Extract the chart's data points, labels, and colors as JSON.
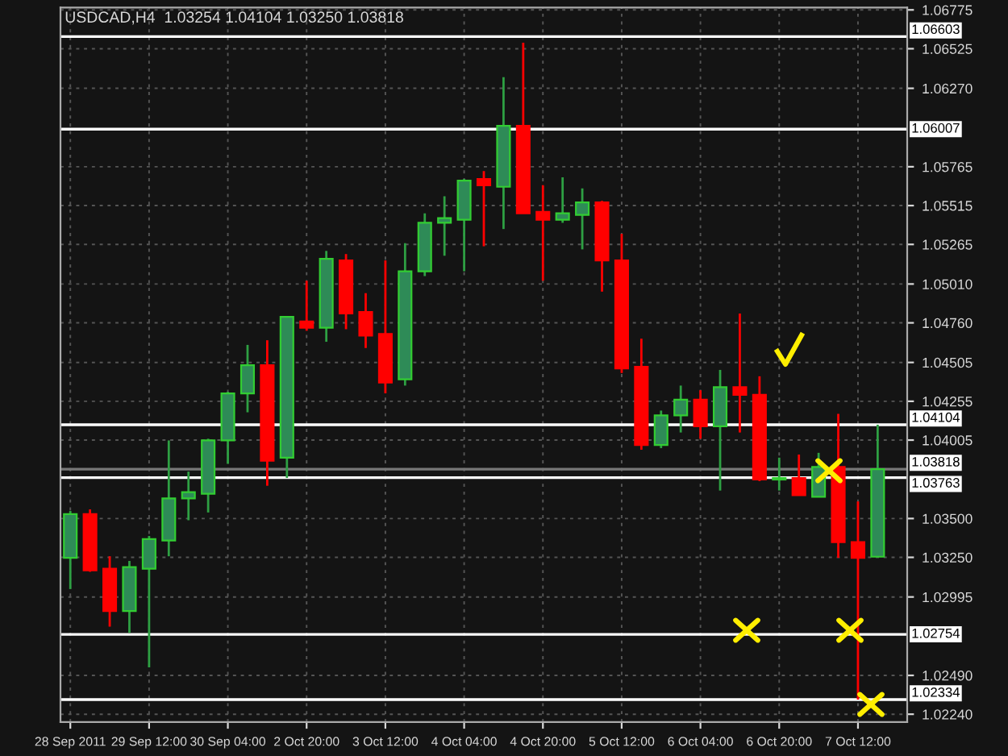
{
  "chart_data": {
    "type": "candlestick",
    "title": "USDCAD,H4  1.03254 1.04104 1.03250 1.03818",
    "categories": [
      "28 Sep 2011",
      null,
      null,
      null,
      "29 Sep 12:00",
      null,
      null,
      null,
      "30 Sep 04:00",
      null,
      null,
      null,
      "2 Oct 20:00",
      null,
      null,
      null,
      "3 Oct 12:00",
      null,
      null,
      null,
      "4 Oct 04:00",
      null,
      null,
      null,
      "4 Oct 20:00",
      null,
      null,
      null,
      "5 Oct 12:00",
      null,
      null,
      null,
      "6 Oct 04:00",
      null,
      null,
      null,
      "6 Oct 20:00",
      null,
      null,
      null,
      "7 Oct 12:00",
      null
    ],
    "ohlc": [
      [
        1.03247,
        1.03549,
        1.03046,
        1.03529
      ],
      [
        1.03529,
        1.03559,
        1.03157,
        1.03167
      ],
      [
        1.03177,
        1.03257,
        1.02804,
        1.02904
      ],
      [
        1.02904,
        1.03227,
        1.02764,
        1.03187
      ],
      [
        1.03177,
        1.03388,
        1.02542,
        1.03368
      ],
      [
        1.03358,
        1.04003,
        1.03257,
        1.0363
      ],
      [
        1.0363,
        1.03802,
        1.03489,
        1.0367
      ],
      [
        1.0366,
        1.04014,
        1.03539,
        1.04003
      ],
      [
        1.04003,
        1.04316,
        1.03852,
        1.04306
      ],
      [
        1.04306,
        1.04618,
        1.04184,
        1.04487
      ],
      [
        1.04487,
        1.04648,
        1.03711,
        1.03872
      ],
      [
        1.03892,
        1.04799,
        1.03761,
        1.04799
      ],
      [
        1.04769,
        1.05031,
        1.04709,
        1.04729
      ],
      [
        1.04729,
        1.05223,
        1.04638,
        1.05172
      ],
      [
        1.05162,
        1.05203,
        1.04719,
        1.0482
      ],
      [
        1.0483,
        1.04951,
        1.04598,
        1.04678
      ],
      [
        1.04688,
        1.05162,
        1.04306,
        1.04376
      ],
      [
        1.04396,
        1.05273,
        1.04356,
        1.05092
      ],
      [
        1.05092,
        1.05465,
        1.05061,
        1.05404
      ],
      [
        1.05404,
        1.05575,
        1.05192,
        1.05434
      ],
      [
        1.05424,
        1.05686,
        1.05092,
        1.05676
      ],
      [
        1.05686,
        1.05737,
        1.05253,
        1.05646
      ],
      [
        1.05636,
        1.06342,
        1.05364,
        1.06029
      ],
      [
        1.06029,
        1.06563,
        1.05465,
        1.05465
      ],
      [
        1.05475,
        1.05646,
        1.05031,
        1.05424
      ],
      [
        1.05424,
        1.05697,
        1.05404,
        1.05465
      ],
      [
        1.05455,
        1.05626,
        1.05233,
        1.05535
      ],
      [
        1.05535,
        1.05545,
        1.04961,
        1.05162
      ],
      [
        1.05162,
        1.05333,
        1.04437,
        1.04467
      ],
      [
        1.04477,
        1.04658,
        1.03943,
        1.03973
      ],
      [
        1.03973,
        1.04195,
        1.03953,
        1.04164
      ],
      [
        1.04164,
        1.04356,
        1.04054,
        1.04265
      ],
      [
        1.04265,
        1.04326,
        1.04014,
        1.04094
      ],
      [
        1.04094,
        1.04457,
        1.0368,
        1.04346
      ],
      [
        1.04346,
        1.0482,
        1.04054,
        1.04296
      ],
      [
        1.04296,
        1.04416,
        1.03741,
        1.03751
      ],
      [
        1.03751,
        1.03892,
        1.0368,
        1.03761
      ],
      [
        1.03761,
        1.03912,
        1.0365,
        1.0365
      ],
      [
        1.0364,
        1.03923,
        1.0364,
        1.03832
      ],
      [
        1.03832,
        1.04174,
        1.03247,
        1.03348
      ],
      [
        1.03348,
        1.0361,
        1.02334,
        1.03247
      ],
      [
        1.03254,
        1.04104,
        1.0325,
        1.03818
      ]
    ],
    "colors": [
      "#2e8b57",
      "#ff0000",
      "#ff0000",
      "#2e8b57",
      "#2e8b57",
      "#2e8b57",
      "#2e8b57",
      "#2e8b57",
      "#2e8b57",
      "#2e8b57",
      "#ff0000",
      "#2e8b57",
      "#ff0000",
      "#2e8b57",
      "#ff0000",
      "#ff0000",
      "#ff0000",
      "#2e8b57",
      "#2e8b57",
      "#2e8b57",
      "#2e8b57",
      "#ff0000",
      "#2e8b57",
      "#ff0000",
      "#ff0000",
      "#2e8b57",
      "#2e8b57",
      "#ff0000",
      "#ff0000",
      "#ff0000",
      "#2e8b57",
      "#2e8b57",
      "#ff0000",
      "#2e8b57",
      "#ff0000",
      "#ff0000",
      "#2e8b57",
      "#ff0000",
      "#2e8b57",
      "#ff0000",
      "#ff0000",
      "#2e8b57"
    ],
    "ylim": [
      1.0219,
      1.0679
    ],
    "yticks": [
      {
        "value": 1.06775,
        "label": "1.06775"
      },
      {
        "value": 1.06525,
        "label": "1.06525"
      },
      {
        "value": 1.0627,
        "label": "1.06270"
      },
      {
        "value": 1.05765,
        "label": "1.05765"
      },
      {
        "value": 1.05515,
        "label": "1.05515"
      },
      {
        "value": 1.05265,
        "label": "1.05265"
      },
      {
        "value": 1.0501,
        "label": "1.05010"
      },
      {
        "value": 1.0476,
        "label": "1.04760"
      },
      {
        "value": 1.04505,
        "label": "1.04505"
      },
      {
        "value": 1.04255,
        "label": "1.04255"
      },
      {
        "value": 1.04005,
        "label": "1.04005"
      },
      {
        "value": 1.035,
        "label": "1.03500"
      },
      {
        "value": 1.0325,
        "label": "1.03250"
      },
      {
        "value": 1.02995,
        "label": "1.02995"
      },
      {
        "value": 1.0249,
        "label": "1.02490"
      },
      {
        "value": 1.0224,
        "label": "1.02240"
      }
    ],
    "ref_lines": [
      {
        "axis": "y",
        "value": 1.06603,
        "label": "1.06603",
        "color": "#ffffff"
      },
      {
        "axis": "y",
        "value": 1.06007,
        "label": "1.06007",
        "color": "#ffffff"
      },
      {
        "axis": "y",
        "value": 1.04104,
        "label": "1.04104",
        "color": "#ffffff"
      },
      {
        "axis": "y",
        "value": 1.03818,
        "label": "1.03818",
        "color": "#777777"
      },
      {
        "axis": "y",
        "value": 1.03763,
        "label": "1.03763",
        "color": "#ffffff"
      },
      {
        "axis": "y",
        "value": 1.02754,
        "label": "1.02754",
        "color": "#ffffff"
      },
      {
        "axis": "y",
        "value": 1.02334,
        "label": "1.02334",
        "color": "#ffffff"
      }
    ],
    "grid": true,
    "legend": false
  }
}
